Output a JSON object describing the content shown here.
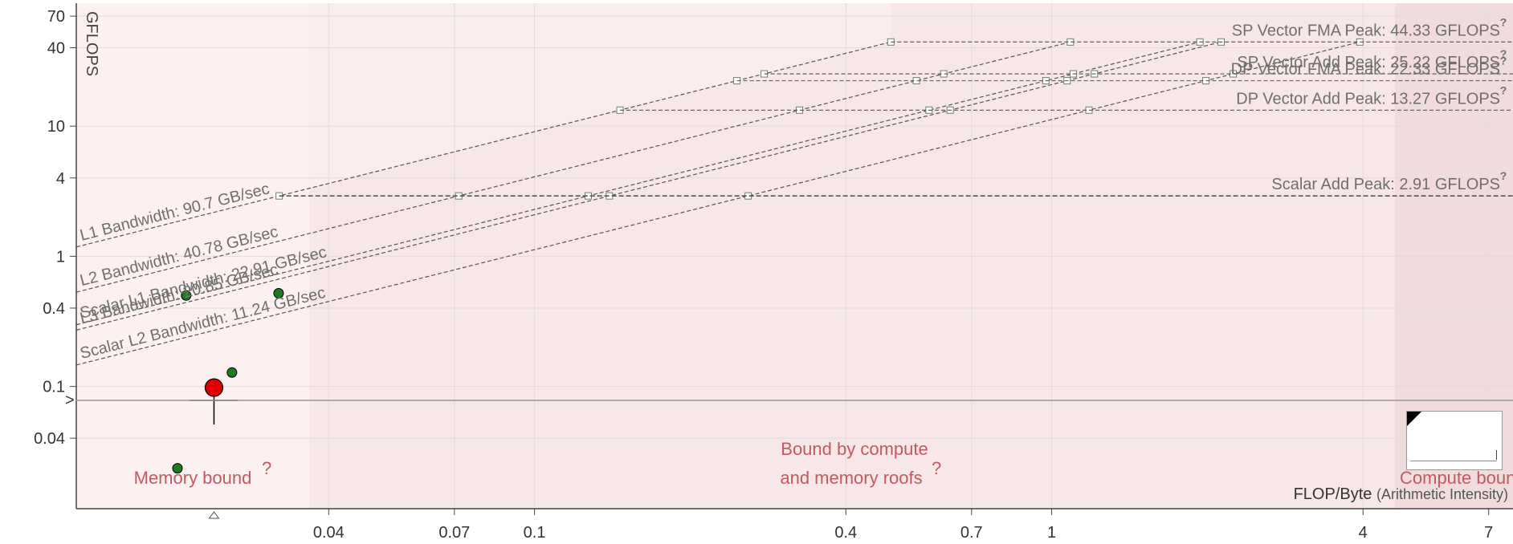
{
  "chart_data": {
    "type": "scatter",
    "title": "",
    "scale": "log-log",
    "ylabel": "GFLOPS",
    "xlabel_main": "FLOP/Byte",
    "xlabel_paren": "(Arithmetic Intensity)",
    "xlim": [
      0.013,
      7.8
    ],
    "ylim": [
      0.0115,
      88
    ],
    "x_ticks": [
      {
        "value": 0.04,
        "label": "0.04"
      },
      {
        "value": 0.07,
        "label": "0.07"
      },
      {
        "value": 0.1,
        "label": "0.1"
      },
      {
        "value": 0.4,
        "label": "0.4"
      },
      {
        "value": 0.7,
        "label": "0.7"
      },
      {
        "value": 1,
        "label": "1"
      },
      {
        "value": 4,
        "label": "4"
      },
      {
        "value": 7,
        "label": "7"
      }
    ],
    "y_ticks": [
      {
        "value": 0.04,
        "label": "0.04"
      },
      {
        "value": 0.1,
        "label": "0.1"
      },
      {
        "value": 0.4,
        "label": "0.4"
      },
      {
        "value": 1,
        "label": "1"
      },
      {
        "value": 4,
        "label": "4"
      },
      {
        "value": 10,
        "label": "10"
      },
      {
        "value": 40,
        "label": "40"
      },
      {
        "value": 70,
        "label": "70"
      }
    ],
    "grid": true,
    "compute_roofs": [
      {
        "label": "SP Vector FMA Peak: 44.33 GFLOPS",
        "gflops": 44.33
      },
      {
        "label": "SP Vector Add Peak: 25.22 GFLOPS",
        "gflops": 25.22
      },
      {
        "label": "DP Vector FMA Peak: 22.33 GFLOPS",
        "gflops": 22.33
      },
      {
        "label": "DP Vector Add Peak: 13.27 GFLOPS",
        "gflops": 13.27
      },
      {
        "label": "Scalar Add Peak: 2.91 GFLOPS",
        "gflops": 2.91
      }
    ],
    "memory_roofs": [
      {
        "label": "L1 Bandwidth: 90.7 GB/sec",
        "gbps": 90.7
      },
      {
        "label": "L2 Bandwidth: 40.78 GB/sec",
        "gbps": 40.78
      },
      {
        "label": "Scalar L1 Bandwidth: 22.91 GB/sec",
        "gbps": 22.91
      },
      {
        "label": "L3 Bandwidth: 20.85 GB/sec",
        "gbps": 20.85
      },
      {
        "label": "Scalar L2 Bandwidth: 11.24 GB/sec",
        "gbps": 11.24
      }
    ],
    "points": [
      {
        "x": 0.0212,
        "y": 0.5,
        "size": "small",
        "color": "#1e7a1e"
      },
      {
        "x": 0.032,
        "y": 0.52,
        "size": "small",
        "color": "#1e7a1e"
      },
      {
        "x": 0.026,
        "y": 0.128,
        "size": "small",
        "color": "#1e7a1e"
      },
      {
        "x": 0.0204,
        "y": 0.0235,
        "size": "small",
        "color": "#1e7a1e"
      },
      {
        "x": 0.024,
        "y": 0.098,
        "size": "large",
        "color": "#e00000"
      }
    ],
    "regions": [
      {
        "label_lines": [
          "Memory bound"
        ]
      },
      {
        "label_lines": [
          "Bound by compute",
          "and memory roofs"
        ]
      },
      {
        "label_lines": [
          "Compute bound"
        ]
      }
    ],
    "colors": {
      "memory_region": "#fcf0f0",
      "mixed_region": "#f7e7e8",
      "compute_region": "#f0dcdd",
      "region_text": "#c05a60",
      "roof_line": "#555555"
    }
  }
}
